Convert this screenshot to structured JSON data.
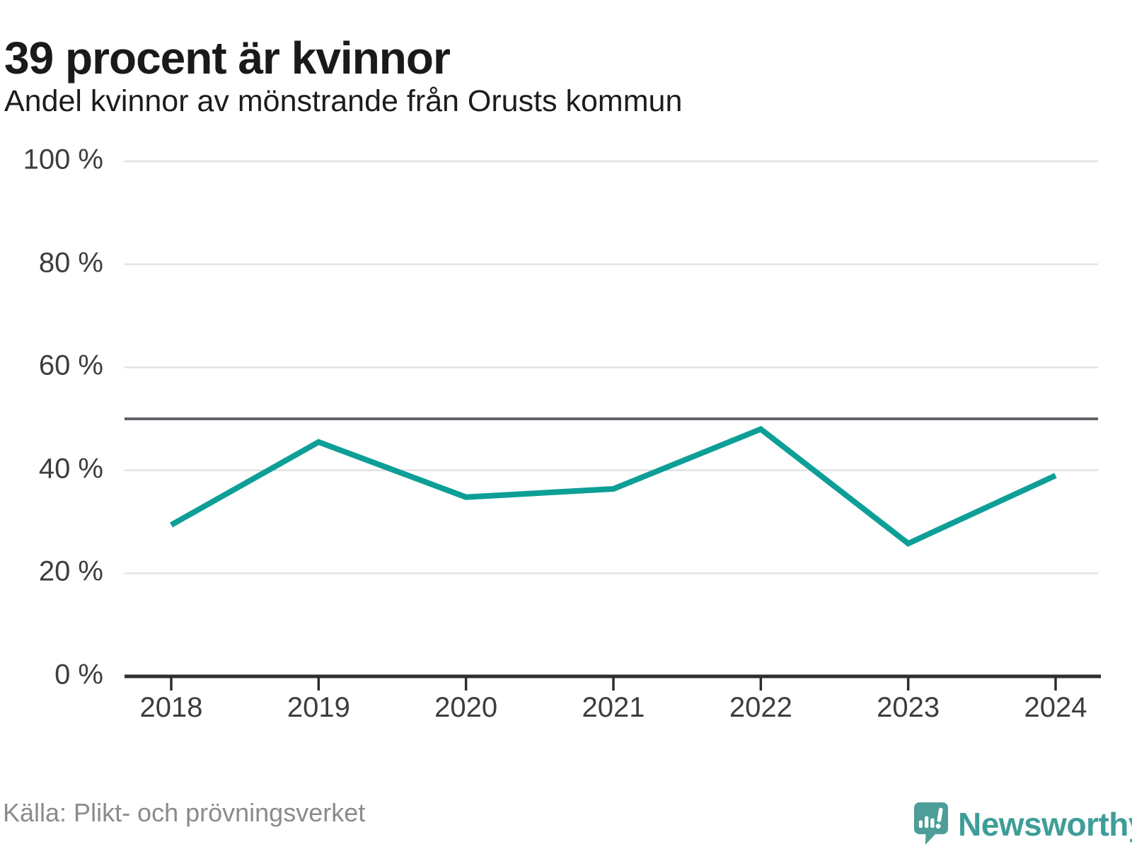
{
  "header": {
    "title": "39 procent är kvinnor",
    "subtitle": "Andel kvinnor av mönstrande från Orusts kommun"
  },
  "chart_data": {
    "type": "line",
    "title": "39 procent är kvinnor",
    "subtitle": "Andel kvinnor av mönstrande från Orusts kommun",
    "x": [
      "2018",
      "2019",
      "2020",
      "2021",
      "2022",
      "2023",
      "2024"
    ],
    "series": [
      {
        "name": "Andel kvinnor av mönstrande",
        "values": [
          29.4,
          45.5,
          34.8,
          36.4,
          48,
          25.8,
          39
        ]
      }
    ],
    "unit": "%",
    "ylim": [
      0,
      100
    ],
    "yticks": [
      0,
      20,
      40,
      60,
      80,
      100
    ],
    "ytick_suffix": " %",
    "reference_line": 50,
    "grid": true,
    "legend": "none"
  },
  "footer": {
    "source": "Källa: Plikt- och prövningsverket",
    "brand": "Newsworthy"
  },
  "colors": {
    "accent": "#0d9f97",
    "grid": "#e2e2e2",
    "axis": "#2e2e31",
    "reference": "#63636b",
    "title_text": "#1a1a1a",
    "tick_text": "#3d3d3d",
    "muted_text": "#8b8b8b",
    "logo_bubble": "#4d9e99",
    "logo_text": "#3f9d98"
  }
}
